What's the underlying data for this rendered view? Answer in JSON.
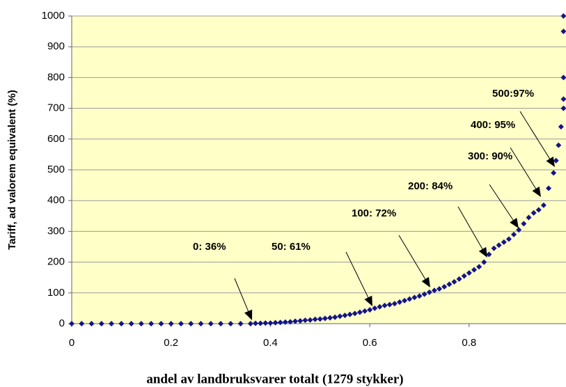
{
  "chart_data": {
    "type": "scatter",
    "x_label": "andel av landbruksvarer totalt (1279 stykker)",
    "y_label": "Tariff, ad valorem equivalent (%)",
    "xlim": [
      0,
      0.995
    ],
    "ylim": [
      0,
      1000
    ],
    "xticks": [
      0,
      0.2,
      0.4,
      0.6,
      0.8
    ],
    "yticks": [
      0,
      100,
      200,
      300,
      400,
      500,
      600,
      700,
      800,
      900,
      1000
    ],
    "grid": true,
    "background": "#ffffc8",
    "annotations": [
      "0: 36%",
      "50: 61%",
      "100: 72%",
      "200: 84%",
      "300: 90%",
      "400: 95%",
      "500:97%"
    ],
    "series": [
      {
        "color": "#14148a",
        "x": [
          0,
          0.02,
          0.04,
          0.06,
          0.08,
          0.1,
          0.12,
          0.14,
          0.16,
          0.18,
          0.2,
          0.22,
          0.24,
          0.26,
          0.28,
          0.3,
          0.32,
          0.34,
          0.36,
          0.37,
          0.38,
          0.39,
          0.4,
          0.41,
          0.42,
          0.43,
          0.44,
          0.45,
          0.46,
          0.47,
          0.48,
          0.49,
          0.5,
          0.51,
          0.52,
          0.53,
          0.54,
          0.55,
          0.56,
          0.57,
          0.58,
          0.59,
          0.6,
          0.61,
          0.62,
          0.63,
          0.64,
          0.65,
          0.66,
          0.67,
          0.68,
          0.69,
          0.7,
          0.71,
          0.72,
          0.73,
          0.74,
          0.75,
          0.76,
          0.77,
          0.78,
          0.79,
          0.8,
          0.81,
          0.82,
          0.83,
          0.84,
          0.85,
          0.86,
          0.87,
          0.88,
          0.89,
          0.9,
          0.91,
          0.92,
          0.93,
          0.94,
          0.95,
          0.96,
          0.97,
          0.975,
          0.98,
          0.985,
          0.99,
          0.99,
          0.99,
          0.99,
          0.99
        ],
        "values": [
          0,
          0,
          0,
          0,
          0,
          0,
          0,
          0,
          0,
          0,
          0,
          0,
          0,
          0,
          0,
          0,
          0,
          0,
          0,
          1,
          1,
          2,
          2,
          3,
          4,
          5,
          6,
          8,
          9,
          11,
          12,
          14,
          15,
          17,
          19,
          21,
          24,
          27,
          30,
          33,
          37,
          41,
          45,
          50,
          55,
          59,
          62,
          65,
          70,
          75,
          80,
          85,
          90,
          96,
          102,
          108,
          113,
          120,
          128,
          136,
          145,
          155,
          165,
          175,
          185,
          200,
          225,
          245,
          255,
          265,
          275,
          290,
          305,
          325,
          345,
          360,
          370,
          385,
          440,
          490,
          530,
          580,
          640,
          700,
          730,
          800,
          950,
          1000
        ]
      }
    ]
  }
}
